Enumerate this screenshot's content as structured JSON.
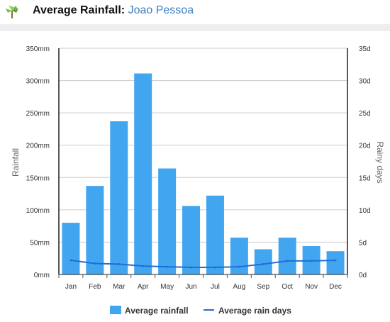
{
  "header": {
    "title_label": "Average Rainfall:",
    "title_city": "Joao Pessoa",
    "logo_icon": "palm-tree-icon"
  },
  "chart_data": {
    "type": "bar",
    "categories": [
      "Jan",
      "Feb",
      "Mar",
      "Apr",
      "May",
      "Jun",
      "Jul",
      "Aug",
      "Sep",
      "Oct",
      "Nov",
      "Dec"
    ],
    "series": [
      {
        "name": "Average rainfall",
        "kind": "bar",
        "axis": "left",
        "color": "#42a5f0",
        "values": [
          80,
          137,
          237,
          311,
          164,
          106,
          122,
          57,
          39,
          57,
          44,
          36
        ]
      },
      {
        "name": "Average rain days",
        "kind": "line",
        "axis": "right",
        "color": "#1f6fd6",
        "values": [
          2.2,
          1.7,
          1.6,
          1.3,
          1.2,
          1.1,
          1.1,
          1.2,
          1.6,
          2.1,
          2.1,
          2.2
        ]
      }
    ],
    "ylabel": "Rainfall",
    "y2label": "Rainy days",
    "ylim": [
      0,
      350
    ],
    "y2lim": [
      0,
      35
    ],
    "yticks": [
      "0mm",
      "50mm",
      "100mm",
      "150mm",
      "200mm",
      "250mm",
      "300mm",
      "350mm"
    ],
    "y2ticks": [
      "0d",
      "5d",
      "10d",
      "15d",
      "20d",
      "25d",
      "30d",
      "35d"
    ],
    "grid": true,
    "legend": "bottom-center"
  }
}
